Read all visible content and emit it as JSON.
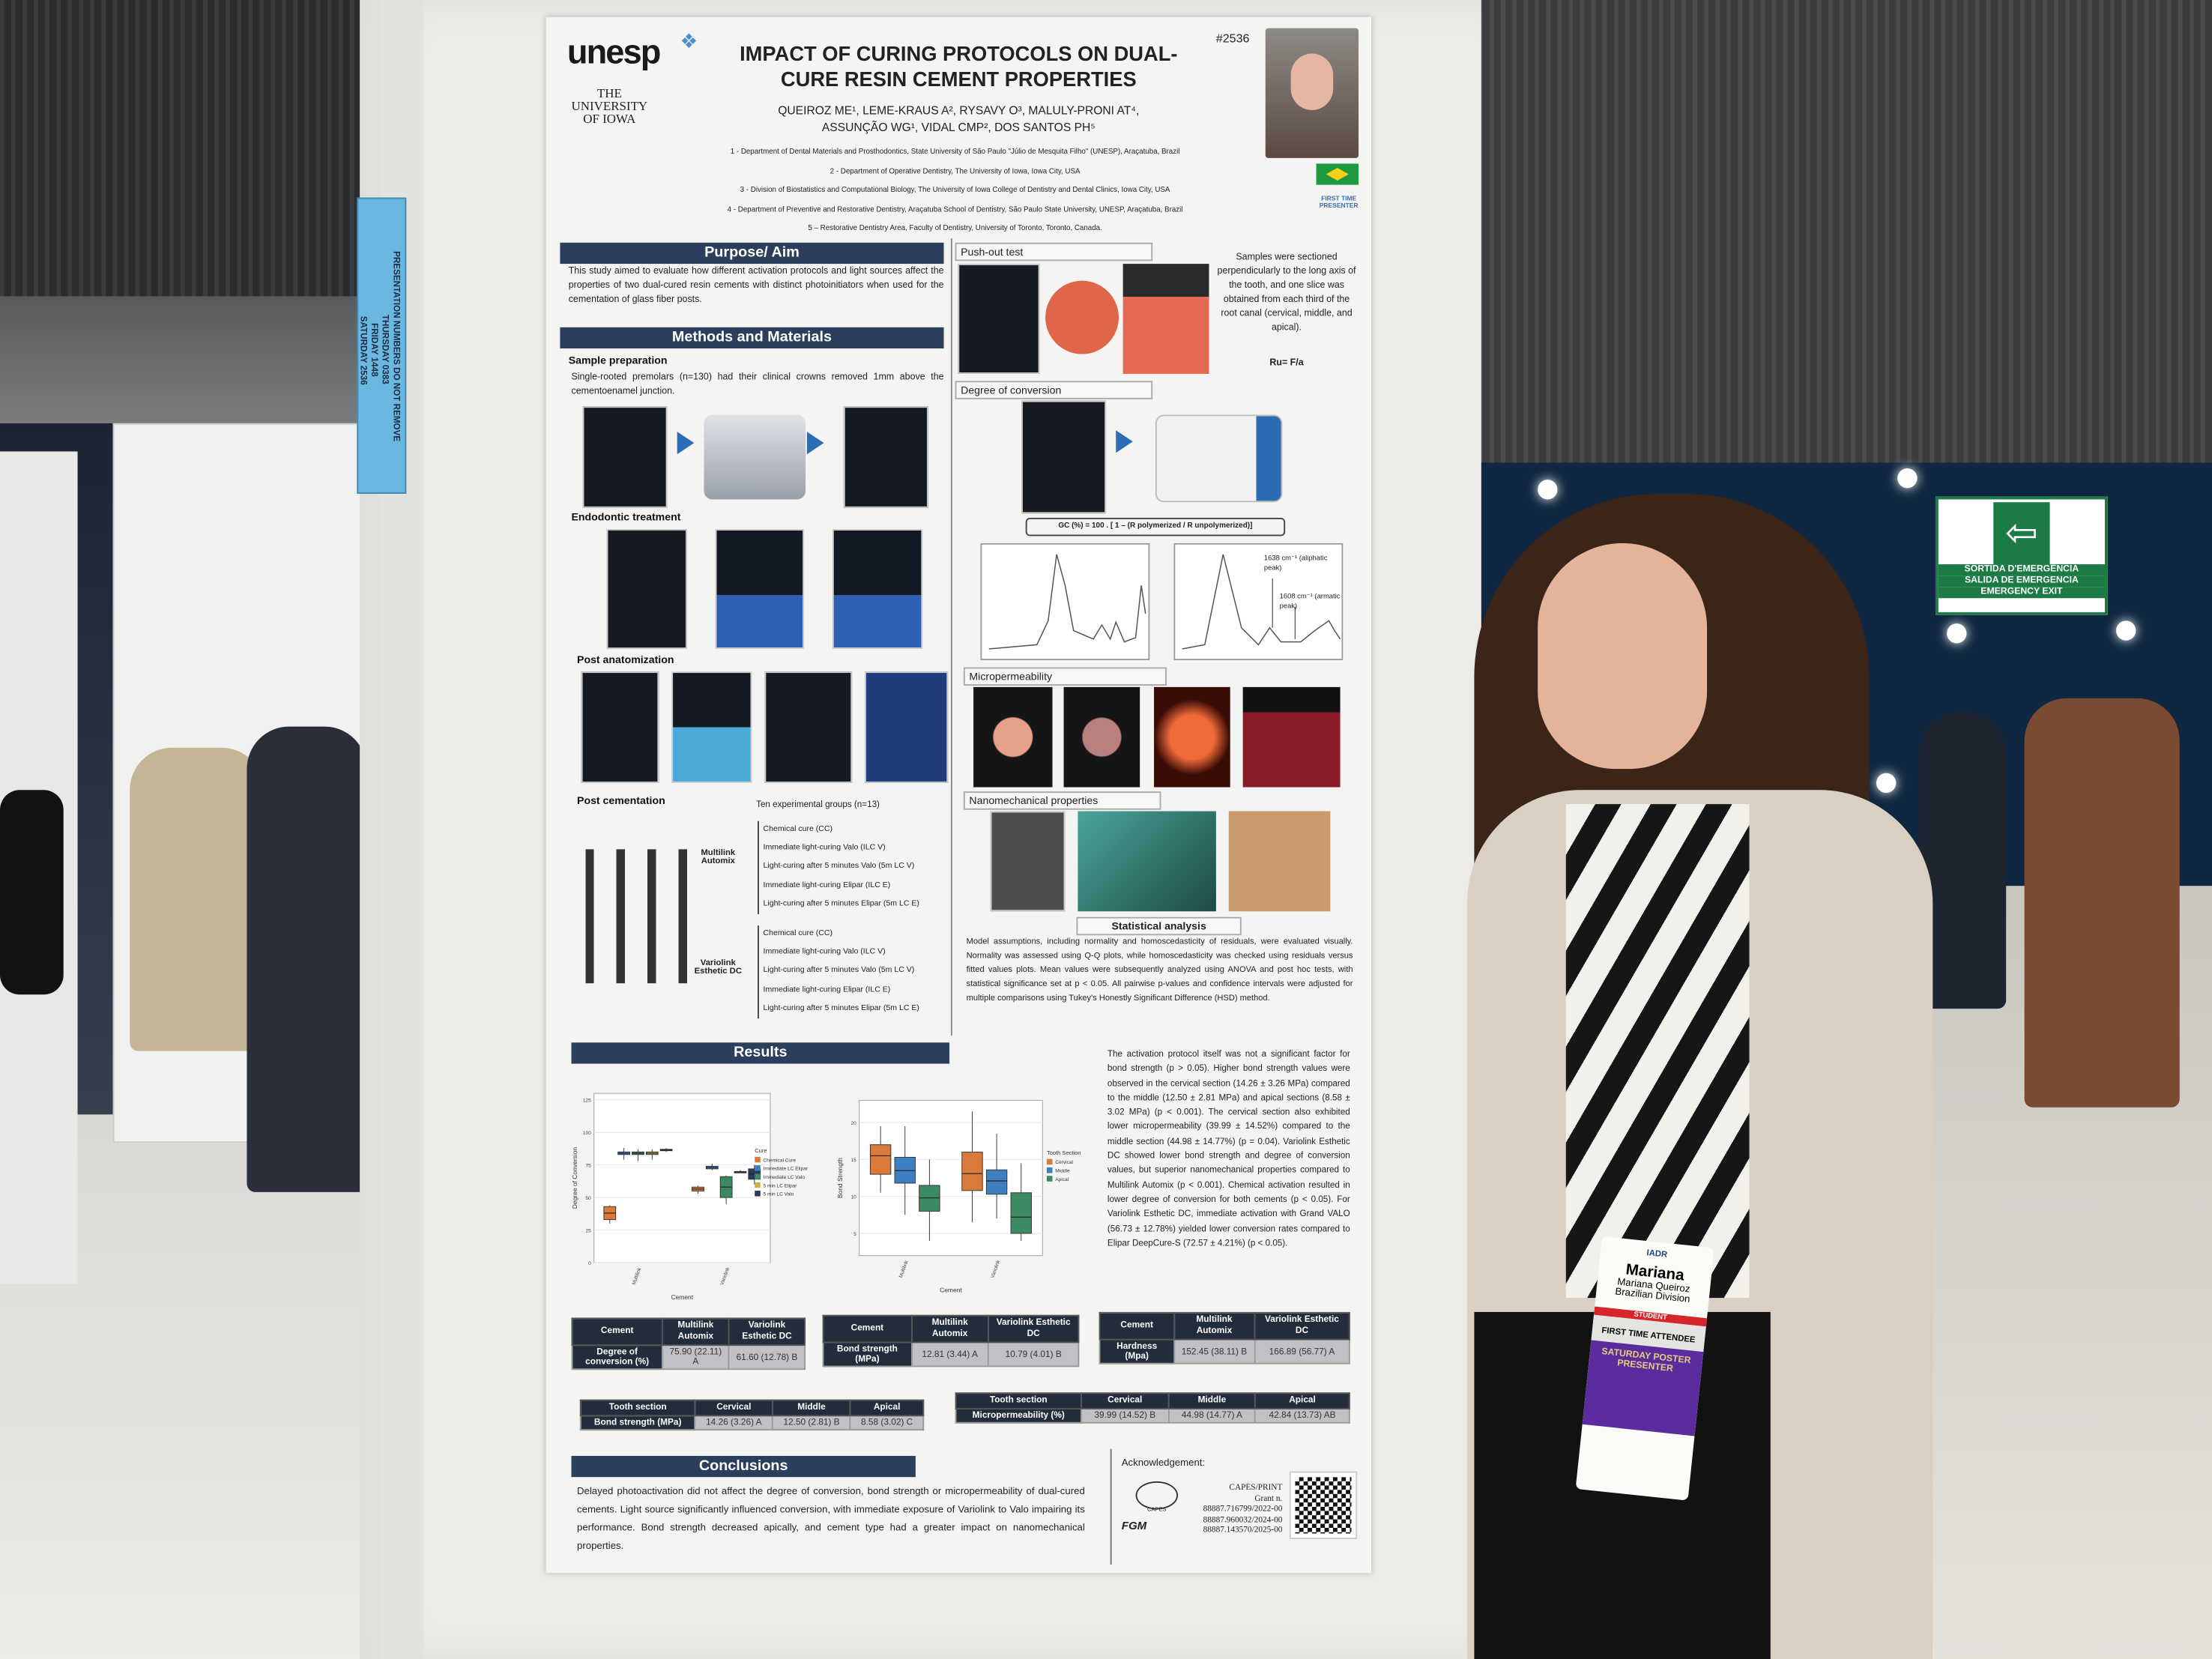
{
  "booth_tag": {
    "header": [
      "PRESENTATION",
      "NUMBERS",
      "DO NOT REMOVE"
    ],
    "days": [
      {
        "day": "THURSDAY",
        "number": "0383"
      },
      {
        "day": "FRIDAY",
        "number": "1448"
      },
      {
        "day": "SATURDAY",
        "number": "2536"
      }
    ]
  },
  "exit_sign": {
    "icon": "running-man-exit-icon",
    "line1": "SORTIDA D'EMERGÈNCIA",
    "line2": "SALIDA DE EMERGENCIA",
    "line3": "EMERGENCY EXIT",
    "color": "#1c7a45"
  },
  "badge": {
    "org": "IADR",
    "first_name": "Mariana",
    "full_name": "Mariana Queiroz",
    "division": "Brazilian Division",
    "category": "STUDENT",
    "ribbon1": "FIRST TIME ATTENDEE",
    "ribbon2": "SATURDAY POSTER PRESENTER"
  },
  "poster": {
    "logo_unesp": "unesp",
    "logo_iowa": [
      "THE",
      "UNIVERSITY",
      "OF IOWA"
    ],
    "number": "#2536",
    "title": "IMPACT OF CURING PROTOCOLS ON DUAL-CURE RESIN CEMENT PROPERTIES",
    "authors_line1": "QUEIROZ ME¹, LEME-KRAUS A², RYSAVY O³, MALULY-PRONI AT⁴,",
    "authors_line2": "ASSUNÇÃO WG¹, VIDAL CMP², DOS SANTOS PH⁵",
    "affiliations": [
      "1 - Department of Dental Materials and Prosthodontics, State University of São Paulo \"Júlio de Mesquita Filho\" (UNESP), Araçatuba, Brazil",
      "2 - Department of Operative Dentistry, The University of Iowa, Iowa City, USA",
      "3 - Division of Biostatistics and Computational Biology, The University of Iowa College of Dentistry and Dental Clinics, Iowa City, USA",
      "4 - Department of Preventive and Restorative Dentistry, Araçatuba School of Dentistry, São Paulo State University, UNESP, Araçatuba, Brazil",
      "5 – Restorative Dentistry Area, Faculty of Dentistry, University of Toronto, Toronto, Canada."
    ],
    "first_time_presenter": "FIRST TIME PRESENTER",
    "purpose": {
      "heading": "Purpose/ Aim",
      "text": "This study aimed to evaluate how different activation protocols and light sources affect the properties of two dual-cured resin cements with distinct photoinitiators when used for the cementation of glass fiber posts."
    },
    "methods": {
      "heading": "Methods and Materials",
      "sample_prep_title": "Sample preparation",
      "sample_prep_text": "Single-rooted premolars (n=130) had their clinical crowns removed 1mm above the cementoenamel junction.",
      "endo_title": "Endodontic treatment",
      "post_anat_title": "Post anatomization",
      "post_cem_title": "Post cementation",
      "groups_title": "Ten experimental groups (n=13)",
      "cement1": "Multilink Automix",
      "cement2": "Variolink Esthetic DC",
      "groups1": [
        "Chemical cure (CC)",
        "Immediate light-curing Valo (ILC V)",
        "Light-curing after 5 minutes Valo (5m LC V)",
        "Immediate light-curing Elipar (ILC E)",
        "Light-curing after 5 minutes Elipar (5m LC E)"
      ],
      "groups2": [
        "Chemical cure (CC)",
        "Immediate light-curing Valo (ILC V)",
        "Light-curing after 5 minutes Valo (5m LC V)",
        "Immediate light-curing Elipar (ILC E)",
        "Light-curing after 5 minutes Elipar (5m LC E)"
      ]
    },
    "pushout": {
      "title": "Push-out test",
      "text": "Samples were sectioned perpendicularly to the long axis of the tooth, and one slice was obtained from each third of the root canal (cervical, middle, and apical).",
      "formula": "Ru= F/a"
    },
    "conversion": {
      "title": "Degree of conversion",
      "formula": "GC (%) = 100 . [ 1 – (R polymerized / R unpolymerized)]",
      "peak1": "1638 cm⁻¹ (aliphatic peak)",
      "peak2": "1608 cm⁻¹ (armatic peak)"
    },
    "microperm_title": "Micropermeability",
    "nano_title": "Nanomechanical properties",
    "stats": {
      "title": "Statistical analysis",
      "text": "Model assumptions, including normality and homoscedasticity of residuals, were evaluated visually. Normality was assessed using Q-Q plots, while homoscedasticity was checked using residuals versus fitted values plots. Mean values were subsequently analyzed using ANOVA and post hoc tests, with statistical significance set at p < 0.05. All pairwise p-values and confidence intervals were adjusted for multiple comparisons using Tukey's Honestly Significant Difference (HSD) method."
    },
    "results": {
      "heading": "Results",
      "text": "The activation protocol itself was not a significant factor for bond strength (p > 0.05). Higher bond strength values were observed in the cervical section (14.26 ± 3.26 MPa) compared to the middle (12.50 ± 2.81 MPa) and apical sections (8.58 ± 3.02 MPa) (p < 0.001). The cervical section also exhibited lower micropermeability (39.99 ± 14.52%) compared to the middle section (44.98 ± 14.77%) (p = 0.04). Variolink Esthetic DC showed lower bond strength and degree of conversion values, but superior nanomechanical properties compared to Multilink Automix (p < 0.001). Chemical activation resulted in lower degree of conversion for both cements (p < 0.05). For Variolink Esthetic DC, immediate activation with Grand VALO (56.73 ± 12.78%) yielded lower conversion rates compared to Elipar DeepCure-S (72.57 ± 4.21%) (p < 0.05).",
      "dc_plot": {
        "ylabel": "Degree of Conversion",
        "xlabel": "Cement",
        "yticks": [
          0,
          25,
          50,
          75,
          100,
          125
        ],
        "categories": [
          "Multilink",
          "Variolink"
        ],
        "legend_title": "Cure",
        "groups": [
          {
            "name": "Chemical Cure",
            "color": "#d9793a"
          },
          {
            "name": "Immediate LC Elipar",
            "color": "#3d7fc1"
          },
          {
            "name": "Immediate LC Valo",
            "color": "#3c8a63"
          },
          {
            "name": "5 min LC Elipar",
            "color": "#c9b24a"
          },
          {
            "name": "5 min LC Valo",
            "color": "#283a5a"
          }
        ],
        "boxes": [
          [
            [
              30,
              33,
              43,
              44
            ],
            [
              79,
              83,
              85,
              88
            ],
            [
              78,
              83,
              85,
              87
            ],
            [
              79,
              83,
              85,
              87
            ],
            [
              85,
              86,
              87,
              88
            ]
          ],
          [
            [
              53,
              55,
              58,
              59
            ],
            [
              71,
              72,
              74,
              76
            ],
            [
              45,
              50,
              66,
              67
            ],
            [
              69,
              69,
              70,
              71
            ],
            [
              60,
              64,
              72,
              75
            ]
          ]
        ]
      },
      "bond_plot": {
        "ylabel": "Bond Strength",
        "xlabel": "Cement",
        "yticks": [
          5,
          10,
          15,
          20
        ],
        "categories": [
          "Multilink",
          "Variolink"
        ],
        "legend_title": "Tooth Section",
        "groups": [
          {
            "name": "Cervical",
            "color": "#d9793a"
          },
          {
            "name": "Middle",
            "color": "#3d7fc1"
          },
          {
            "name": "Apical",
            "color": "#3c8a63"
          }
        ],
        "boxes": [
          [
            [
              10.5,
              13,
              15.5,
              17,
              19.5
            ],
            [
              7.5,
              11.8,
              13.5,
              15.3,
              19.5
            ],
            [
              4,
              8,
              9.8,
              11.5,
              15
            ]
          ],
          [
            [
              6.5,
              10.8,
              13.1,
              16,
              21.5
            ],
            [
              7,
              10.3,
              12.1,
              13.6,
              18.5
            ],
            [
              4,
              5,
              7.2,
              10.5,
              14.5
            ]
          ]
        ]
      },
      "table_dc": {
        "header": [
          "Cement",
          "Multilink Automix",
          "Variolink Esthetic DC"
        ],
        "row": [
          "Degree of conversion (%)",
          "75.90 (22.11) A",
          "61.60 (12.78) B"
        ]
      },
      "table_bond": {
        "header": [
          "Cement",
          "Multilink Automix",
          "Variolink Esthetic DC"
        ],
        "row": [
          "Bond strength (MPa)",
          "12.81 (3.44) A",
          "10.79 (4.01) B"
        ]
      },
      "table_hard": {
        "header": [
          "Cement",
          "Multilink Automix",
          "Variolink Esthetic DC"
        ],
        "row": [
          "Hardness (Mpa)",
          "152.45 (38.11) B",
          "166.89 (56.77) A"
        ]
      },
      "table_section_bond": {
        "header": [
          "Tooth section",
          "Cervical",
          "Middle",
          "Apical"
        ],
        "row": [
          "Bond strength (MPa)",
          "14.26 (3.26) A",
          "12.50 (2.81) B",
          "8.58 (3.02) C"
        ]
      },
      "table_section_micro": {
        "header": [
          "Tooth section",
          "Cervical",
          "Middle",
          "Apical"
        ],
        "row": [
          "Micropermeability (%)",
          "39.99 (14.52) B",
          "44.98 (14.77) A",
          "42.84 (13.73) AB"
        ]
      }
    },
    "conclusions": {
      "heading": "Conclusions",
      "text": "Delayed photoactivation did not affect the degree of conversion, bond strength or micropermeability of dual-cured cements. Light source significantly influenced conversion, with immediate exposure of Variolink to Valo impairing its performance. Bond strength decreased apically, and cement type had a greater impact on nanomechanical properties."
    },
    "acknowledgement": {
      "title": "Acknowledgement:",
      "capes": "CAPES",
      "fgm": "FGM",
      "funder": "CAPES/PRINT",
      "grant_label": "Grant n.",
      "grants": [
        "88887.716799/2022-00",
        "88887.960032/2024-00",
        "88887.143570/2025-00"
      ]
    }
  }
}
